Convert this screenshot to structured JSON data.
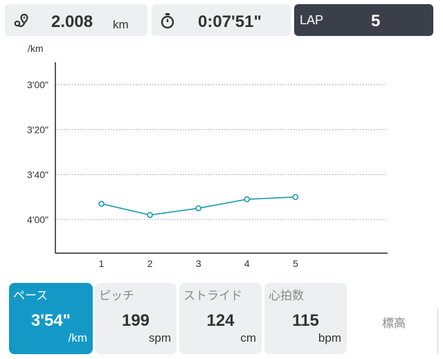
{
  "header": {
    "distance": {
      "value": "2.008",
      "unit": "km"
    },
    "time": {
      "value": "0:07'51\""
    },
    "lap": {
      "label": "LAP",
      "value": "5"
    }
  },
  "chart_data": {
    "type": "line",
    "ylabel": "/km",
    "y_unit_seconds_per_km": true,
    "y_reversed": true,
    "ylim": [
      170,
      255
    ],
    "y_ticks": [
      {
        "value": 180,
        "label": "3'00\""
      },
      {
        "value": 200,
        "label": "3'20\""
      },
      {
        "value": 220,
        "label": "3'40\""
      },
      {
        "value": 240,
        "label": "4'00\""
      }
    ],
    "x": [
      1,
      2,
      3,
      4,
      5
    ],
    "x_tick_labels": [
      "1",
      "2",
      "3",
      "4",
      "5"
    ],
    "xlim": [
      0.05,
      6.9
    ],
    "series": [
      {
        "values": [
          233,
          238,
          235,
          231,
          230
        ],
        "color": "#1a98b0"
      }
    ],
    "grid": "dotted-horizontal"
  },
  "tabs": [
    {
      "id": "pace",
      "label": "ペース",
      "value": "3'54\"",
      "unit": "/km",
      "active": true
    },
    {
      "id": "pitch",
      "label": "ピッチ",
      "value": "199",
      "unit": "spm",
      "active": false
    },
    {
      "id": "stride",
      "label": "ストライド",
      "value": "124",
      "unit": "cm",
      "active": false
    },
    {
      "id": "hr",
      "label": "心拍数",
      "value": "115",
      "unit": "bpm",
      "active": false
    },
    {
      "id": "elevation",
      "label": "標高",
      "active": false
    }
  ],
  "colors": {
    "accent": "#1499c7",
    "lap_bg": "#3b3f4a",
    "card_bg": "#eeeff1",
    "line": "#1a98b0"
  }
}
